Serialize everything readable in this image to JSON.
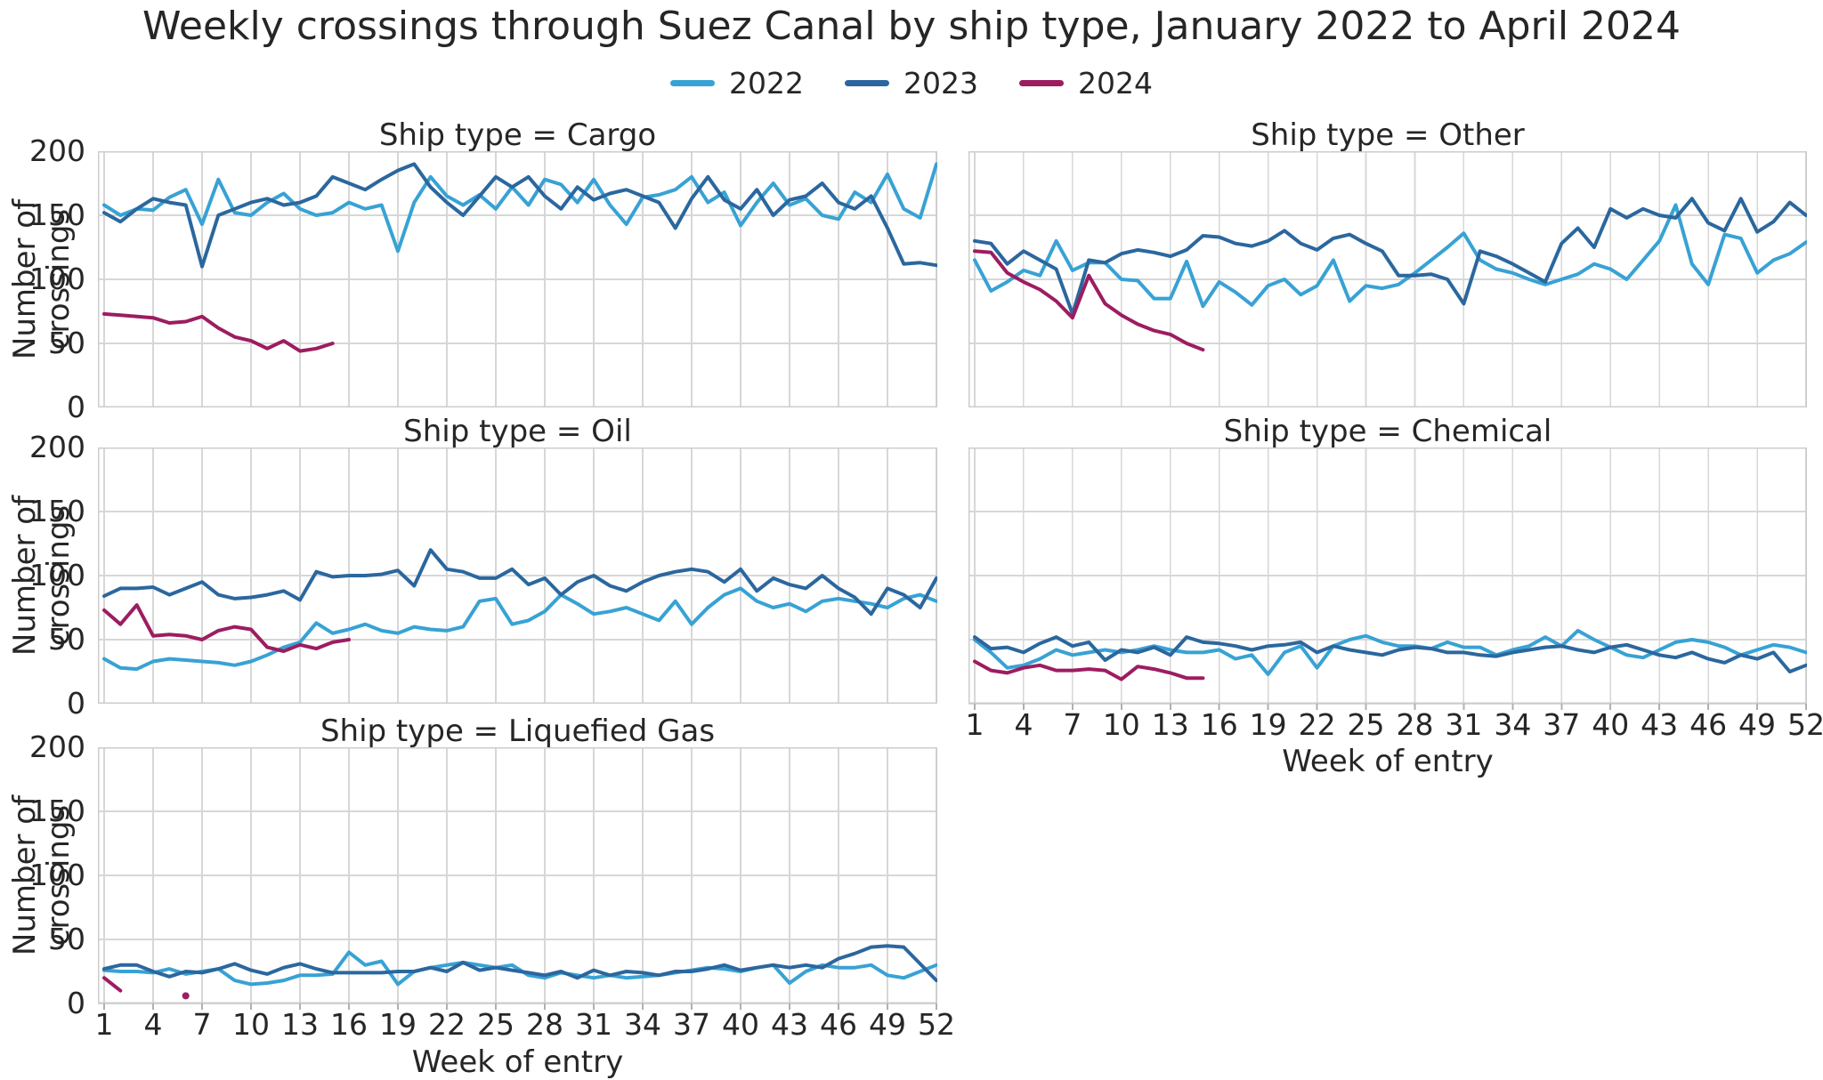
{
  "chart_data": {
    "type": "line",
    "title": "Weekly crossings through Suez Canal by ship type, January 2022 to April 2024",
    "xlabel": "Week of entry",
    "ylabel": "Number of crossings",
    "x_ticks": [
      1,
      4,
      7,
      10,
      13,
      16,
      19,
      22,
      25,
      28,
      31,
      34,
      37,
      40,
      43,
      46,
      49,
      52
    ],
    "y_ticks": [
      200,
      150,
      100,
      50,
      0
    ],
    "ylim": [
      0,
      200
    ],
    "xlim": [
      1,
      52
    ],
    "grid": true,
    "legend_position": "top-center",
    "legend": [
      {
        "label": "2022",
        "color": "#38a2d4"
      },
      {
        "label": "2023",
        "color": "#2b679e"
      },
      {
        "label": "2024",
        "color": "#9c1d61"
      }
    ],
    "colors": {
      "grid": "#d7d7d7",
      "spine": "#cccccc",
      "text": "#262626",
      "tick": "#b0b0b0"
    },
    "facets": [
      {
        "id": "cargo",
        "title": "Ship type = Cargo",
        "series": {
          "2022": [
            158,
            150,
            155,
            154,
            164,
            170,
            143,
            178,
            152,
            150,
            160,
            167,
            155,
            150,
            152,
            160,
            155,
            158,
            122,
            160,
            180,
            165,
            158,
            166,
            155,
            172,
            158,
            178,
            174,
            160,
            178,
            158,
            143,
            164,
            166,
            170,
            180,
            160,
            168,
            142,
            160,
            175,
            158,
            163,
            150,
            147,
            168,
            160,
            182,
            155,
            148,
            190
          ],
          "2023": [
            152,
            145,
            155,
            163,
            160,
            158,
            110,
            150,
            155,
            160,
            163,
            158,
            160,
            165,
            180,
            175,
            170,
            178,
            185,
            190,
            172,
            160,
            150,
            165,
            180,
            172,
            180,
            165,
            155,
            172,
            162,
            167,
            170,
            165,
            160,
            140,
            163,
            180,
            162,
            155,
            170,
            150,
            162,
            165,
            175,
            160,
            155,
            165,
            140,
            112,
            113,
            111
          ],
          "2024": [
            73,
            72,
            71,
            70,
            66,
            67,
            71,
            62,
            55,
            52,
            46,
            52,
            44,
            46,
            50
          ]
        }
      },
      {
        "id": "other",
        "title": "Ship type = Other",
        "series": {
          "2022": [
            115,
            91,
            98,
            107,
            103,
            130,
            107,
            113,
            113,
            100,
            99,
            85,
            85,
            114,
            79,
            98,
            90,
            80,
            95,
            100,
            88,
            95,
            115,
            83,
            95,
            93,
            96,
            105,
            115,
            125,
            136,
            115,
            108,
            105,
            100,
            96,
            100,
            104,
            112,
            108,
            100,
            115,
            130,
            158,
            112,
            96,
            135,
            132,
            105,
            115,
            120,
            129
          ],
          "2023": [
            130,
            128,
            112,
            122,
            115,
            108,
            73,
            115,
            113,
            120,
            123,
            121,
            118,
            123,
            134,
            133,
            128,
            126,
            130,
            138,
            128,
            123,
            132,
            135,
            128,
            122,
            103,
            103,
            104,
            100,
            81,
            122,
            118,
            112,
            105,
            98,
            128,
            140,
            125,
            155,
            148,
            155,
            150,
            148,
            163,
            144,
            138,
            163,
            137,
            145,
            160,
            150
          ],
          "2024": [
            122,
            121,
            105,
            98,
            92,
            83,
            70,
            103,
            81,
            72,
            65,
            60,
            57,
            50,
            45
          ]
        }
      },
      {
        "id": "oil",
        "title": "Ship type = Oil",
        "series": {
          "2022": [
            35,
            28,
            27,
            33,
            35,
            34,
            33,
            32,
            30,
            33,
            38,
            44,
            48,
            63,
            55,
            58,
            62,
            57,
            55,
            60,
            58,
            57,
            60,
            80,
            82,
            62,
            65,
            72,
            85,
            78,
            70,
            72,
            75,
            70,
            65,
            80,
            62,
            75,
            85,
            90,
            80,
            75,
            78,
            72,
            80,
            82,
            80,
            78,
            75,
            82,
            85,
            80
          ],
          "2023": [
            84,
            90,
            90,
            91,
            85,
            90,
            95,
            85,
            82,
            83,
            85,
            88,
            81,
            103,
            99,
            100,
            100,
            101,
            104,
            92,
            120,
            105,
            103,
            98,
            98,
            105,
            93,
            98,
            85,
            95,
            100,
            92,
            88,
            95,
            100,
            103,
            105,
            103,
            95,
            105,
            88,
            98,
            93,
            90,
            100,
            90,
            83,
            70,
            90,
            85,
            75,
            98
          ],
          "2024": [
            73,
            62,
            77,
            53,
            54,
            53,
            50,
            57,
            60,
            58,
            44,
            41,
            46,
            43,
            48,
            50
          ]
        }
      },
      {
        "id": "chemical",
        "title": "Ship type = Chemical",
        "series": {
          "2022": [
            50,
            40,
            28,
            30,
            35,
            42,
            38,
            40,
            42,
            40,
            42,
            45,
            42,
            40,
            40,
            42,
            35,
            38,
            23,
            40,
            45,
            28,
            45,
            50,
            53,
            48,
            45,
            45,
            43,
            48,
            44,
            44,
            38,
            42,
            45,
            52,
            45,
            57,
            50,
            44,
            38,
            36,
            42,
            48,
            50,
            48,
            44,
            38,
            42,
            46,
            44,
            40
          ],
          "2023": [
            52,
            43,
            44,
            40,
            47,
            52,
            45,
            48,
            34,
            42,
            40,
            44,
            38,
            52,
            48,
            47,
            45,
            42,
            45,
            46,
            48,
            40,
            45,
            42,
            40,
            38,
            42,
            44,
            43,
            40,
            40,
            38,
            37,
            40,
            42,
            44,
            45,
            42,
            40,
            44,
            46,
            42,
            38,
            36,
            40,
            35,
            32,
            38,
            35,
            40,
            25,
            30
          ],
          "2024": [
            33,
            26,
            24,
            28,
            30,
            26,
            26,
            27,
            26,
            19,
            29,
            27,
            24,
            20,
            20
          ]
        }
      },
      {
        "id": "liquefied_gas",
        "title": "Ship type = Liquefied Gas",
        "series": {
          "2022": [
            26,
            25,
            25,
            24,
            27,
            23,
            25,
            27,
            18,
            15,
            16,
            18,
            22,
            22,
            23,
            40,
            30,
            33,
            15,
            25,
            28,
            30,
            32,
            30,
            28,
            30,
            22,
            20,
            24,
            22,
            20,
            22,
            20,
            21,
            22,
            24,
            26,
            28,
            27,
            25,
            28,
            30,
            16,
            25,
            30,
            28,
            28,
            30,
            22,
            20,
            25,
            30
          ],
          "2023": [
            27,
            30,
            30,
            25,
            21,
            25,
            24,
            27,
            31,
            26,
            23,
            28,
            31,
            27,
            24,
            24,
            24,
            24,
            25,
            25,
            28,
            25,
            32,
            26,
            28,
            26,
            24,
            22,
            25,
            20,
            26,
            22,
            25,
            24,
            22,
            25,
            25,
            27,
            30,
            26,
            28,
            30,
            28,
            30,
            28,
            35,
            39,
            44,
            45,
            44,
            31,
            18
          ],
          "2024": [
            20,
            10,
            null,
            null,
            null,
            6
          ]
        }
      }
    ]
  }
}
